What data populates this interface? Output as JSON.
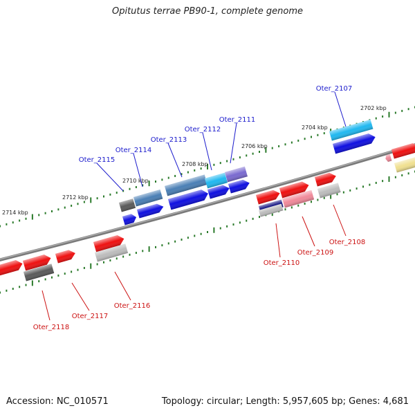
{
  "title": "Opitutus terrae PB90-1, complete genome",
  "footer": {
    "accession": "Accession: NC_010571",
    "summary": "Topology: circular; Length: 5,957,605 bp; Genes: 4,681"
  },
  "colors": {
    "backbone": "#808080",
    "tick": "#2a7a2a",
    "blue_label": "#1a1acc",
    "red_label": "#cc1111",
    "red": "#ee1111",
    "blue": "#1010e0",
    "steel": "#4a7fb5",
    "cyan": "#20b8f0",
    "purple": "#7a6ad0",
    "darkgray": "#5a5a5a",
    "lightgray": "#bcbcbc",
    "pink": "#f08a9a",
    "navy": "#101080",
    "yellow": "#f0e090"
  },
  "scale_labels": [
    "2702 kbp",
    "2704 kbp",
    "2706 kbp",
    "2708 kbp",
    "2710 kbp",
    "2712 kbp",
    "2714 kbp"
  ],
  "upper_labels": [
    "Oter_2107",
    "Oter_2111",
    "Oter_2112",
    "Oter_2113",
    "Oter_2114",
    "Oter_2115"
  ],
  "lower_labels": [
    "Oter_2108",
    "Oter_2109",
    "Oter_2110",
    "Oter_2116",
    "Oter_2117",
    "Oter_2118"
  ],
  "genes": [
    {
      "color": "red"
    },
    {
      "color": "red"
    },
    {
      "color": "red"
    },
    {
      "color": "red"
    },
    {
      "color": "darkgray"
    },
    {
      "color": "lightgray"
    },
    {
      "color": "red"
    },
    {
      "color": "red"
    },
    {
      "color": "pink"
    },
    {
      "color": "red"
    },
    {
      "color": "navy"
    },
    {
      "color": "lightgray"
    },
    {
      "color": "lightgray"
    },
    {
      "color": "red"
    },
    {
      "color": "yellow"
    },
    {
      "color": "pink"
    },
    {
      "color": "darkgray"
    },
    {
      "color": "steel"
    },
    {
      "color": "steel"
    },
    {
      "color": "cyan"
    },
    {
      "color": "purple"
    },
    {
      "color": "cyan"
    },
    {
      "color": "blue"
    },
    {
      "color": "blue"
    },
    {
      "color": "blue"
    },
    {
      "color": "blue"
    },
    {
      "color": "blue"
    },
    {
      "color": "blue"
    }
  ]
}
